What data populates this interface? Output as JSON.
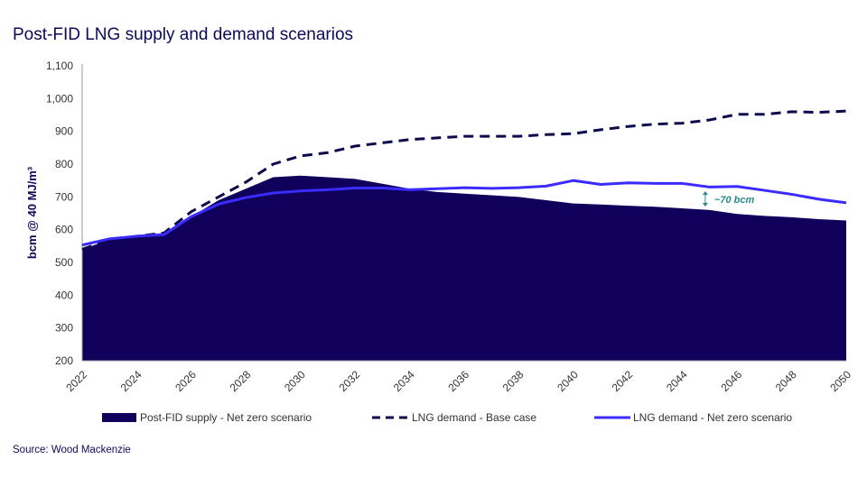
{
  "title": "Post-FID LNG supply and demand scenarios",
  "source": "Source: Wood Mackenzie",
  "chart_data": {
    "type": "area",
    "title": "Post-FID LNG supply and demand scenarios",
    "xlabel": "",
    "ylabel": "bcm @ 40 MJ/m³",
    "ylim": [
      200,
      1100
    ],
    "yticks": [
      200,
      300,
      400,
      500,
      600,
      700,
      800,
      900,
      1000,
      1100
    ],
    "ytick_labels": [
      "200",
      "300",
      "400",
      "500",
      "600",
      "700",
      "800",
      "900",
      "1,000",
      "1,100"
    ],
    "xticks": [
      2022,
      2024,
      2026,
      2028,
      2030,
      2032,
      2034,
      2036,
      2038,
      2040,
      2042,
      2044,
      2046,
      2048,
      2050
    ],
    "x": [
      2022,
      2023,
      2024,
      2025,
      2026,
      2027,
      2028,
      2029,
      2030,
      2031,
      2032,
      2033,
      2034,
      2035,
      2036,
      2037,
      2038,
      2039,
      2040,
      2041,
      2042,
      2043,
      2044,
      2045,
      2046,
      2047,
      2048,
      2049,
      2050
    ],
    "legend_position": "bottom",
    "grid": false,
    "series": [
      {
        "name": "Post-FID supply - Net zero scenario",
        "style": "area",
        "color": "#10005c",
        "values": [
          540,
          570,
          580,
          590,
          640,
          690,
          725,
          760,
          765,
          760,
          755,
          740,
          725,
          715,
          710,
          705,
          700,
          690,
          680,
          677,
          673,
          670,
          665,
          660,
          648,
          642,
          638,
          632,
          628
        ]
      },
      {
        "name": "LNG demand - Base case",
        "style": "dashed",
        "color": "#0d0a4c",
        "values": [
          540,
          570,
          580,
          590,
          655,
          700,
          745,
          800,
          825,
          835,
          855,
          865,
          875,
          880,
          885,
          885,
          885,
          890,
          893,
          905,
          915,
          922,
          925,
          935,
          952,
          952,
          960,
          958,
          962
        ]
      },
      {
        "name": "LNG demand - Net zero scenario",
        "style": "solid",
        "color": "#3a2bff",
        "values": [
          553,
          572,
          580,
          585,
          640,
          678,
          698,
          712,
          718,
          722,
          727,
          727,
          722,
          725,
          728,
          726,
          728,
          733,
          750,
          738,
          743,
          741,
          741,
          730,
          732,
          720,
          708,
          693,
          682
        ]
      }
    ],
    "annotations": [
      {
        "text": "~70 bcm",
        "x": 2045,
        "color": "#2a8a8a"
      }
    ]
  }
}
